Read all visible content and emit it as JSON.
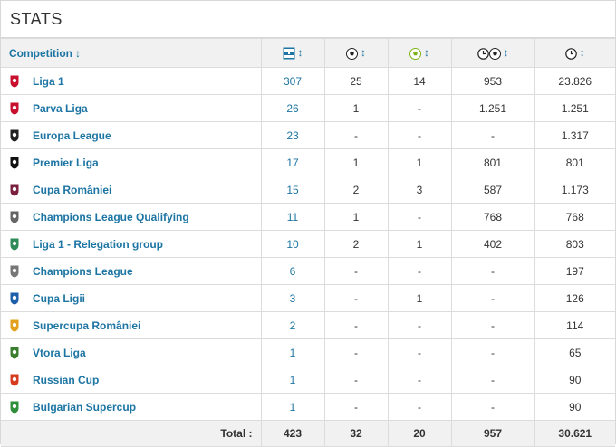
{
  "panel": {
    "title": "STATS"
  },
  "header": {
    "competition": "Competition",
    "sort_glyph": "↕",
    "icons": [
      "appearances-icon",
      "goals-icon",
      "assists-icon",
      "minutes-per-goal-icon",
      "minutes-played-icon"
    ]
  },
  "rows": [
    {
      "name": "Liga 1",
      "logo": "liga-1-logo-icon",
      "apps": "307",
      "goals": "25",
      "assists": "14",
      "mpg": "953",
      "mins": "23.826"
    },
    {
      "name": "Parva Liga",
      "logo": "parva-liga-logo-icon",
      "apps": "26",
      "goals": "1",
      "assists": "-",
      "mpg": "1.251",
      "mins": "1.251"
    },
    {
      "name": "Europa League",
      "logo": "europa-league-logo-icon",
      "apps": "23",
      "goals": "-",
      "assists": "-",
      "mpg": "-",
      "mins": "1.317"
    },
    {
      "name": "Premier Liga",
      "logo": "premier-liga-logo-icon",
      "apps": "17",
      "goals": "1",
      "assists": "1",
      "mpg": "801",
      "mins": "801"
    },
    {
      "name": "Cupa României",
      "logo": "cupa-romaniei-logo-icon",
      "apps": "15",
      "goals": "2",
      "assists": "3",
      "mpg": "587",
      "mins": "1.173"
    },
    {
      "name": "Champions League Qualifying",
      "logo": "champions-league-qualifying-logo-icon",
      "apps": "11",
      "goals": "1",
      "assists": "-",
      "mpg": "768",
      "mins": "768"
    },
    {
      "name": "Liga 1 - Relegation group",
      "logo": "liga-1-relegation-logo-icon",
      "apps": "10",
      "goals": "2",
      "assists": "1",
      "mpg": "402",
      "mins": "803"
    },
    {
      "name": "Champions League",
      "logo": "champions-league-logo-icon",
      "apps": "6",
      "goals": "-",
      "assists": "-",
      "mpg": "-",
      "mins": "197"
    },
    {
      "name": "Cupa Ligii",
      "logo": "cupa-ligii-logo-icon",
      "apps": "3",
      "goals": "-",
      "assists": "1",
      "mpg": "-",
      "mins": "126"
    },
    {
      "name": "Supercupa României",
      "logo": "supercupa-romaniei-logo-icon",
      "apps": "2",
      "goals": "-",
      "assists": "-",
      "mpg": "-",
      "mins": "114"
    },
    {
      "name": "Vtora Liga",
      "logo": "vtora-liga-logo-icon",
      "apps": "1",
      "goals": "-",
      "assists": "-",
      "mpg": "-",
      "mins": "65"
    },
    {
      "name": "Russian Cup",
      "logo": "russian-cup-logo-icon",
      "apps": "1",
      "goals": "-",
      "assists": "-",
      "mpg": "-",
      "mins": "90"
    },
    {
      "name": "Bulgarian Supercup",
      "logo": "bulgarian-supercup-logo-icon",
      "apps": "1",
      "goals": "-",
      "assists": "-",
      "mpg": "-",
      "mins": "90"
    }
  ],
  "totals": {
    "label": "Total :",
    "apps": "423",
    "goals": "32",
    "assists": "20",
    "mpg": "957",
    "mins": "30.621"
  },
  "colors": {
    "link": "#1d75a3",
    "header_bg": "#f1f1f1",
    "border": "#dcdcdc"
  }
}
